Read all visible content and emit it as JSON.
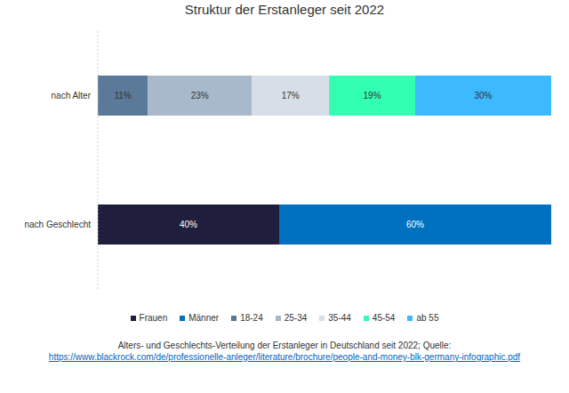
{
  "chart_data": {
    "type": "bar",
    "title": "Struktur der Erstanleger seit 2022",
    "orientation": "horizontal",
    "stacked": true,
    "data_labels": true,
    "tick_labels": "y",
    "grid": false,
    "legend": "bottom",
    "xlim": [
      0,
      100
    ],
    "categories": [
      "nach Alter",
      "nach Geschlecht"
    ],
    "series": [
      {
        "name": "Frauen",
        "color": "#1f1f3d",
        "values": [
          null,
          40
        ],
        "value_labels": [
          null,
          "40%"
        ]
      },
      {
        "name": "Männer",
        "color": "#0070c0",
        "values": [
          null,
          60
        ],
        "value_labels": [
          null,
          "60%"
        ]
      },
      {
        "name": "18-24",
        "color": "#5b7a99",
        "values": [
          11,
          null
        ],
        "value_labels": [
          "11%",
          null
        ]
      },
      {
        "name": "25-34",
        "color": "#a9b9cc",
        "values": [
          23,
          null
        ],
        "value_labels": [
          "23%",
          null
        ]
      },
      {
        "name": "35-44",
        "color": "#d7dee7",
        "values": [
          17,
          null
        ],
        "value_labels": [
          "17%",
          null
        ]
      },
      {
        "name": "45-54",
        "color": "#33ffb3",
        "values": [
          19,
          null
        ],
        "value_labels": [
          "19%",
          null
        ]
      },
      {
        "name": "ab 55",
        "color": "#3db9ff",
        "values": [
          30,
          null
        ],
        "value_labels": [
          "30%",
          null
        ]
      }
    ],
    "footnote": "Alters- und Geschlechts-Verteilung der Erstanleger in Deutschland seit 2022; Quelle:",
    "source_url": "https://www.blackrock.com/de/professionelle-anleger/literature/brochure/people-and-money-blk-germany-infographic.pdf"
  }
}
